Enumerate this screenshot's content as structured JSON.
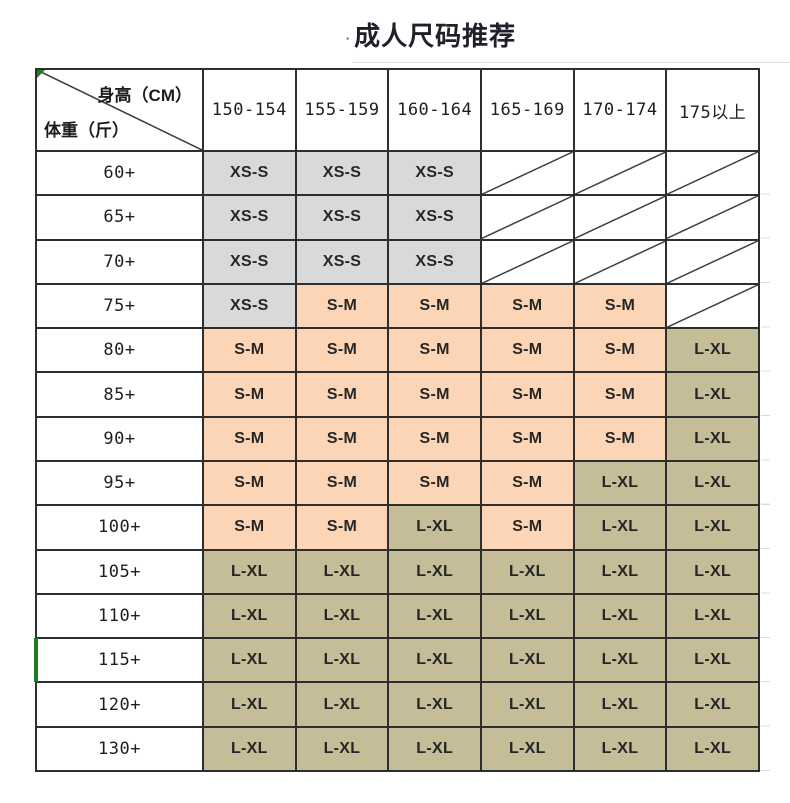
{
  "title_dot": "·",
  "chart_data": {
    "type": "table",
    "title": "成人尺码推荐",
    "corner": {
      "top": "身高（CM）",
      "bottom": "体重（斤）"
    },
    "columns": [
      "150-154",
      "155-159",
      "160-164",
      "165-169",
      "170-174",
      "175以上"
    ],
    "row_labels": [
      "60+",
      "65+",
      "70+",
      "75+",
      "80+",
      "85+",
      "90+",
      "95+",
      "100+",
      "105+",
      "110+",
      "115+",
      "120+",
      "130+"
    ],
    "cells": [
      [
        "XS-S",
        "XS-S",
        "XS-S",
        "",
        "",
        ""
      ],
      [
        "XS-S",
        "XS-S",
        "XS-S",
        "",
        "",
        ""
      ],
      [
        "XS-S",
        "XS-S",
        "XS-S",
        "",
        "",
        ""
      ],
      [
        "XS-S",
        "S-M",
        "S-M",
        "S-M",
        "S-M",
        ""
      ],
      [
        "S-M",
        "S-M",
        "S-M",
        "S-M",
        "S-M",
        "L-XL"
      ],
      [
        "S-M",
        "S-M",
        "S-M",
        "S-M",
        "S-M",
        "L-XL"
      ],
      [
        "S-M",
        "S-M",
        "S-M",
        "S-M",
        "S-M",
        "L-XL"
      ],
      [
        "S-M",
        "S-M",
        "S-M",
        "S-M",
        "L-XL",
        "L-XL"
      ],
      [
        "S-M",
        "S-M",
        "L-XL",
        "S-M",
        "L-XL",
        "L-XL"
      ],
      [
        "L-XL",
        "L-XL",
        "L-XL",
        "L-XL",
        "L-XL",
        "L-XL"
      ],
      [
        "L-XL",
        "L-XL",
        "L-XL",
        "L-XL",
        "L-XL",
        "L-XL"
      ],
      [
        "L-XL",
        "L-XL",
        "L-XL",
        "L-XL",
        "L-XL",
        "L-XL"
      ],
      [
        "L-XL",
        "L-XL",
        "L-XL",
        "L-XL",
        "L-XL",
        "L-XL"
      ],
      [
        "L-XL",
        "L-XL",
        "L-XL",
        "L-XL",
        "L-XL",
        "L-XL"
      ]
    ],
    "cell_colors": {
      "XS-S": "#d9d9d9",
      "S-M": "#fbd5b5",
      "L-XL": "#c4bd97"
    },
    "empty_cells": "diagonal-slash",
    "border_color": "#2e2e2e",
    "error_marker_color": "#1e7d1e",
    "green_row_border_color": "#1e7d1e",
    "green_row_label": "115+"
  }
}
